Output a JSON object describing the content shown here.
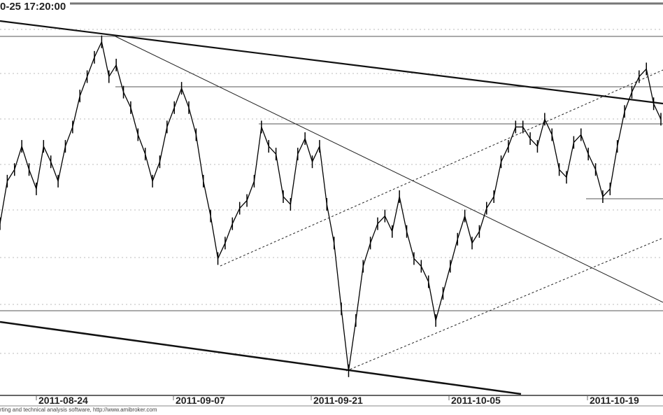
{
  "header": {
    "title": "0-25 17:20:00"
  },
  "footer": {
    "text": "rting and technical analysis software, http://www.amibroker.com"
  },
  "chart_data": {
    "type": "line",
    "title": "0-25 17:20:00",
    "xlabel": "",
    "ylabel": "",
    "x_tick_labels": [
      "2011-08-24",
      "2011-09-07",
      "2011-09-21",
      "2011-10-05",
      "2011-10-19"
    ],
    "grid": true,
    "ylim": [
      0,
      100
    ],
    "series": [
      {
        "color": "#000000",
        "values": [
          44,
          55,
          58,
          64,
          58,
          53,
          64,
          60,
          55,
          64,
          69,
          77,
          82,
          87,
          91,
          82,
          85,
          78,
          74,
          67,
          62,
          55,
          60,
          69,
          74,
          79,
          74,
          67,
          55,
          46,
          35,
          39,
          44,
          48,
          50,
          55,
          69,
          64,
          62,
          51,
          49,
          62,
          66,
          60,
          64,
          49,
          39,
          22,
          6,
          19,
          33,
          39,
          44,
          46,
          42,
          51,
          42,
          35,
          33,
          29,
          19,
          26,
          33,
          40,
          46,
          39,
          42,
          48,
          51,
          60,
          64,
          69,
          69,
          66,
          64,
          71,
          67,
          58,
          56,
          65,
          67,
          62,
          58,
          51,
          53,
          64,
          73,
          78,
          82,
          84,
          75,
          71
        ]
      }
    ],
    "reference_lines": {
      "horizontal": 4,
      "trendlines": 3,
      "dotted_channels": 2
    }
  }
}
